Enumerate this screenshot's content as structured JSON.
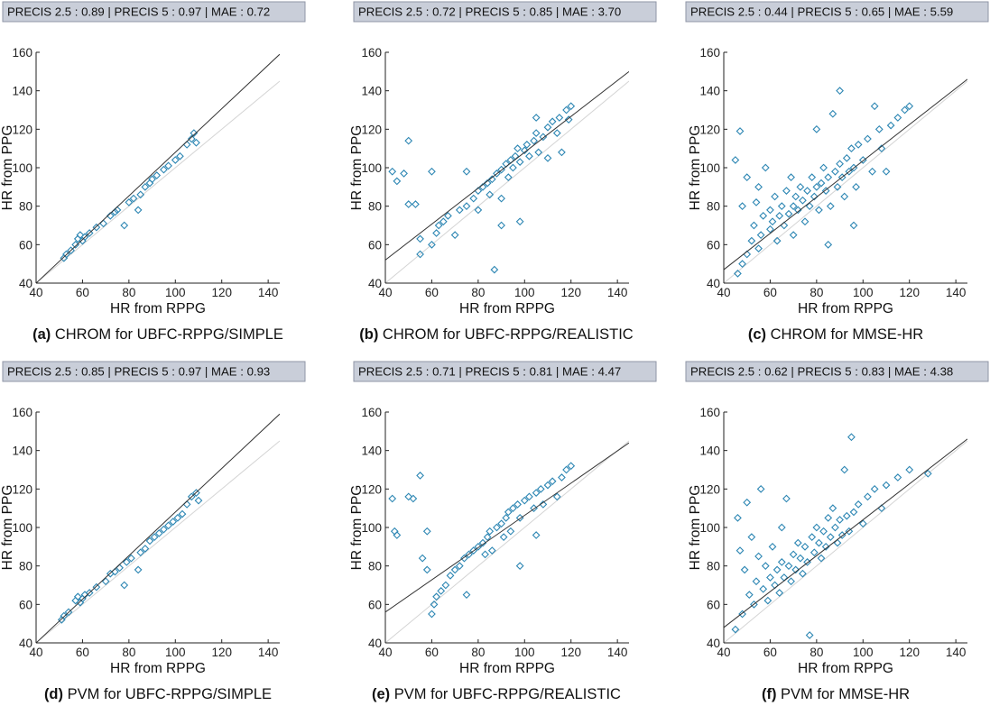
{
  "chart_data": [
    {
      "type": "scatter",
      "panel_label": "(a)",
      "caption": "CHROM for UBFC-RPPG/SIMPLE",
      "header": "PRECIS 2.5 : 0.89 | PRECIS 5 : 0.97 | MAE : 0.72",
      "xlabel": "HR from RPPG",
      "ylabel": "HR from PPG",
      "xlim": [
        40,
        145
      ],
      "ylim": [
        40,
        160
      ],
      "xticks": [
        40,
        60,
        80,
        100,
        120,
        140
      ],
      "yticks": [
        40,
        60,
        80,
        100,
        120,
        140,
        160
      ],
      "identity_line": true,
      "fit_line": [
        [
          40,
          40
        ],
        [
          145,
          159
        ]
      ],
      "points": [
        [
          52,
          53
        ],
        [
          53,
          55
        ],
        [
          55,
          57
        ],
        [
          57,
          60
        ],
        [
          58,
          63
        ],
        [
          59,
          65
        ],
        [
          60,
          62
        ],
        [
          61,
          64
        ],
        [
          63,
          66
        ],
        [
          66,
          69
        ],
        [
          69,
          71
        ],
        [
          72,
          75
        ],
        [
          74,
          77
        ],
        [
          75,
          78
        ],
        [
          78,
          70
        ],
        [
          80,
          82
        ],
        [
          82,
          84
        ],
        [
          84,
          78
        ],
        [
          85,
          86
        ],
        [
          87,
          90
        ],
        [
          89,
          92
        ],
        [
          90,
          94
        ],
        [
          92,
          96
        ],
        [
          95,
          99
        ],
        [
          97,
          101
        ],
        [
          100,
          104
        ],
        [
          102,
          106
        ],
        [
          105,
          112
        ],
        [
          107,
          115
        ],
        [
          108,
          118
        ],
        [
          109,
          113
        ]
      ]
    },
    {
      "type": "scatter",
      "panel_label": "(b)",
      "caption": "CHROM for UBFC-RPPG/REALISTIC",
      "header": "PRECIS 2.5 : 0.72 | PRECIS 5 : 0.85 | MAE : 3.70",
      "xlabel": "HR from RPPG",
      "ylabel": "HR from PPG",
      "xlim": [
        40,
        145
      ],
      "ylim": [
        40,
        160
      ],
      "xticks": [
        40,
        60,
        80,
        100,
        120,
        140
      ],
      "yticks": [
        40,
        60,
        80,
        100,
        120,
        140,
        160
      ],
      "identity_line": true,
      "fit_line": [
        [
          40,
          52
        ],
        [
          145,
          150
        ]
      ],
      "points": [
        [
          43,
          98
        ],
        [
          45,
          93
        ],
        [
          48,
          97
        ],
        [
          50,
          114
        ],
        [
          50,
          81
        ],
        [
          53,
          81
        ],
        [
          55,
          55
        ],
        [
          55,
          63
        ],
        [
          60,
          98
        ],
        [
          60,
          60
        ],
        [
          62,
          66
        ],
        [
          63,
          70
        ],
        [
          65,
          72
        ],
        [
          67,
          75
        ],
        [
          70,
          65
        ],
        [
          72,
          78
        ],
        [
          75,
          80
        ],
        [
          75,
          98
        ],
        [
          78,
          84
        ],
        [
          80,
          88
        ],
        [
          80,
          78
        ],
        [
          82,
          90
        ],
        [
          84,
          92
        ],
        [
          85,
          86
        ],
        [
          86,
          94
        ],
        [
          87,
          47
        ],
        [
          88,
          97
        ],
        [
          90,
          99
        ],
        [
          90,
          84
        ],
        [
          92,
          102
        ],
        [
          93,
          95
        ],
        [
          94,
          104
        ],
        [
          95,
          100
        ],
        [
          96,
          106
        ],
        [
          97,
          110
        ],
        [
          98,
          103
        ],
        [
          100,
          109
        ],
        [
          101,
          112
        ],
        [
          102,
          106
        ],
        [
          104,
          114
        ],
        [
          105,
          118
        ],
        [
          106,
          108
        ],
        [
          108,
          116
        ],
        [
          110,
          121
        ],
        [
          110,
          105
        ],
        [
          112,
          124
        ],
        [
          114,
          118
        ],
        [
          115,
          126
        ],
        [
          116,
          108
        ],
        [
          118,
          130
        ],
        [
          119,
          125
        ],
        [
          120,
          132
        ],
        [
          105,
          126
        ],
        [
          98,
          72
        ],
        [
          90,
          70
        ]
      ]
    },
    {
      "type": "scatter",
      "panel_label": "(c)",
      "caption": "CHROM for MMSE-HR",
      "header": "PRECIS 2.5 : 0.44 | PRECIS 5 : 0.65 | MAE : 5.59",
      "xlabel": "HR from RPPG",
      "ylabel": "HR from PPG",
      "xlim": [
        40,
        145
      ],
      "ylim": [
        40,
        160
      ],
      "xticks": [
        40,
        60,
        80,
        100,
        120,
        140
      ],
      "yticks": [
        40,
        60,
        80,
        100,
        120,
        140,
        160
      ],
      "identity_line": true,
      "fit_line": [
        [
          40,
          47
        ],
        [
          145,
          146
        ]
      ],
      "points": [
        [
          45,
          104
        ],
        [
          46,
          45
        ],
        [
          47,
          119
        ],
        [
          48,
          50
        ],
        [
          48,
          80
        ],
        [
          50,
          55
        ],
        [
          50,
          95
        ],
        [
          52,
          62
        ],
        [
          53,
          70
        ],
        [
          54,
          82
        ],
        [
          55,
          58
        ],
        [
          55,
          90
        ],
        [
          56,
          65
        ],
        [
          57,
          75
        ],
        [
          58,
          100
        ],
        [
          60,
          68
        ],
        [
          60,
          78
        ],
        [
          61,
          72
        ],
        [
          62,
          85
        ],
        [
          63,
          62
        ],
        [
          64,
          75
        ],
        [
          65,
          80
        ],
        [
          66,
          70
        ],
        [
          67,
          88
        ],
        [
          68,
          76
        ],
        [
          69,
          95
        ],
        [
          70,
          80
        ],
        [
          70,
          65
        ],
        [
          71,
          85
        ],
        [
          72,
          78
        ],
        [
          73,
          90
        ],
        [
          74,
          83
        ],
        [
          75,
          72
        ],
        [
          76,
          88
        ],
        [
          77,
          80
        ],
        [
          78,
          95
        ],
        [
          79,
          85
        ],
        [
          80,
          120
        ],
        [
          80,
          90
        ],
        [
          81,
          78
        ],
        [
          82,
          92
        ],
        [
          83,
          100
        ],
        [
          84,
          88
        ],
        [
          85,
          95
        ],
        [
          86,
          80
        ],
        [
          87,
          128
        ],
        [
          88,
          98
        ],
        [
          89,
          90
        ],
        [
          90,
          102
        ],
        [
          90,
          140
        ],
        [
          91,
          95
        ],
        [
          92,
          85
        ],
        [
          93,
          105
        ],
        [
          94,
          98
        ],
        [
          95,
          110
        ],
        [
          96,
          100
        ],
        [
          97,
          90
        ],
        [
          98,
          112
        ],
        [
          100,
          104
        ],
        [
          102,
          115
        ],
        [
          104,
          98
        ],
        [
          105,
          132
        ],
        [
          107,
          120
        ],
        [
          108,
          110
        ],
        [
          110,
          98
        ],
        [
          112,
          122
        ],
        [
          115,
          126
        ],
        [
          118,
          130
        ],
        [
          120,
          132
        ],
        [
          96,
          70
        ],
        [
          85,
          60
        ]
      ]
    },
    {
      "type": "scatter",
      "panel_label": "(d)",
      "caption": "PVM for UBFC-RPPG/SIMPLE",
      "header": "PRECIS 2.5 : 0.85 | PRECIS 5 : 0.97 | MAE : 0.93",
      "xlabel": "HR from RPPG",
      "ylabel": "HR from PPG",
      "xlim": [
        40,
        145
      ],
      "ylim": [
        40,
        160
      ],
      "xticks": [
        40,
        60,
        80,
        100,
        120,
        140
      ],
      "yticks": [
        40,
        60,
        80,
        100,
        120,
        140,
        160
      ],
      "identity_line": true,
      "fit_line": [
        [
          40,
          40
        ],
        [
          145,
          159
        ]
      ],
      "points": [
        [
          51,
          52
        ],
        [
          52,
          54
        ],
        [
          54,
          56
        ],
        [
          57,
          62
        ],
        [
          58,
          64
        ],
        [
          59,
          61
        ],
        [
          60,
          63
        ],
        [
          61,
          65
        ],
        [
          63,
          66
        ],
        [
          66,
          69
        ],
        [
          70,
          72
        ],
        [
          72,
          76
        ],
        [
          74,
          77
        ],
        [
          76,
          79
        ],
        [
          78,
          70
        ],
        [
          79,
          82
        ],
        [
          81,
          84
        ],
        [
          84,
          78
        ],
        [
          85,
          87
        ],
        [
          87,
          89
        ],
        [
          89,
          93
        ],
        [
          91,
          95
        ],
        [
          93,
          97
        ],
        [
          95,
          99
        ],
        [
          97,
          101
        ],
        [
          99,
          103
        ],
        [
          101,
          105
        ],
        [
          103,
          107
        ],
        [
          105,
          112
        ],
        [
          107,
          116
        ],
        [
          109,
          118
        ],
        [
          110,
          114
        ]
      ]
    },
    {
      "type": "scatter",
      "panel_label": "(e)",
      "caption": "PVM for UBFC-RPPG/REALISTIC",
      "header": "PRECIS 2.5 : 0.71 | PRECIS 5 : 0.81 | MAE : 4.47",
      "xlabel": "HR from RPPG",
      "ylabel": "HR from PPG",
      "xlim": [
        40,
        145
      ],
      "ylim": [
        40,
        160
      ],
      "xticks": [
        40,
        60,
        80,
        100,
        120,
        140
      ],
      "yticks": [
        40,
        60,
        80,
        100,
        120,
        140,
        160
      ],
      "identity_line": true,
      "fit_line": [
        [
          40,
          56
        ],
        [
          145,
          144
        ]
      ],
      "points": [
        [
          43,
          115
        ],
        [
          44,
          98
        ],
        [
          45,
          96
        ],
        [
          50,
          116
        ],
        [
          52,
          115
        ],
        [
          55,
          127
        ],
        [
          56,
          84
        ],
        [
          58,
          78
        ],
        [
          58,
          98
        ],
        [
          60,
          55
        ],
        [
          61,
          60
        ],
        [
          62,
          64
        ],
        [
          64,
          67
        ],
        [
          66,
          70
        ],
        [
          68,
          75
        ],
        [
          70,
          78
        ],
        [
          72,
          80
        ],
        [
          74,
          84
        ],
        [
          75,
          65
        ],
        [
          76,
          86
        ],
        [
          78,
          88
        ],
        [
          80,
          90
        ],
        [
          82,
          92
        ],
        [
          83,
          86
        ],
        [
          84,
          95
        ],
        [
          85,
          98
        ],
        [
          86,
          88
        ],
        [
          88,
          100
        ],
        [
          90,
          102
        ],
        [
          91,
          95
        ],
        [
          92,
          105
        ],
        [
          93,
          108
        ],
        [
          94,
          98
        ],
        [
          95,
          110
        ],
        [
          97,
          112
        ],
        [
          98,
          105
        ],
        [
          100,
          114
        ],
        [
          102,
          116
        ],
        [
          104,
          110
        ],
        [
          105,
          118
        ],
        [
          107,
          120
        ],
        [
          108,
          112
        ],
        [
          110,
          122
        ],
        [
          112,
          124
        ],
        [
          114,
          116
        ],
        [
          116,
          126
        ],
        [
          118,
          130
        ],
        [
          120,
          132
        ],
        [
          98,
          80
        ],
        [
          105,
          96
        ]
      ]
    },
    {
      "type": "scatter",
      "panel_label": "(f)",
      "caption": "PVM for MMSE-HR",
      "header": "PRECIS 2.5 : 0.62 | PRECIS 5 : 0.83 | MAE : 4.38",
      "xlabel": "HR from RPPG",
      "ylabel": "HR from PPG",
      "xlim": [
        40,
        145
      ],
      "ylim": [
        40,
        160
      ],
      "xticks": [
        40,
        60,
        80,
        100,
        120,
        140
      ],
      "yticks": [
        40,
        60,
        80,
        100,
        120,
        140,
        160
      ],
      "identity_line": true,
      "fit_line": [
        [
          40,
          48
        ],
        [
          145,
          146
        ]
      ],
      "points": [
        [
          45,
          47
        ],
        [
          46,
          105
        ],
        [
          47,
          88
        ],
        [
          48,
          55
        ],
        [
          49,
          78
        ],
        [
          50,
          113
        ],
        [
          51,
          65
        ],
        [
          52,
          95
        ],
        [
          53,
          60
        ],
        [
          54,
          72
        ],
        [
          55,
          85
        ],
        [
          56,
          120
        ],
        [
          57,
          68
        ],
        [
          58,
          80
        ],
        [
          59,
          62
        ],
        [
          60,
          74
        ],
        [
          61,
          90
        ],
        [
          62,
          70
        ],
        [
          63,
          78
        ],
        [
          64,
          66
        ],
        [
          65,
          82
        ],
        [
          66,
          74
        ],
        [
          67,
          115
        ],
        [
          68,
          80
        ],
        [
          69,
          72
        ],
        [
          70,
          86
        ],
        [
          71,
          78
        ],
        [
          72,
          92
        ],
        [
          73,
          84
        ],
        [
          74,
          76
        ],
        [
          75,
          90
        ],
        [
          76,
          82
        ],
        [
          77,
          44
        ],
        [
          78,
          95
        ],
        [
          79,
          87
        ],
        [
          80,
          100
        ],
        [
          81,
          92
        ],
        [
          82,
          84
        ],
        [
          83,
          98
        ],
        [
          84,
          90
        ],
        [
          85,
          105
        ],
        [
          86,
          95
        ],
        [
          87,
          110
        ],
        [
          88,
          100
        ],
        [
          89,
          92
        ],
        [
          90,
          104
        ],
        [
          91,
          96
        ],
        [
          92,
          130
        ],
        [
          93,
          106
        ],
        [
          94,
          98
        ],
        [
          95,
          147
        ],
        [
          96,
          108
        ],
        [
          98,
          112
        ],
        [
          100,
          102
        ],
        [
          102,
          116
        ],
        [
          105,
          120
        ],
        [
          108,
          110
        ],
        [
          110,
          122
        ],
        [
          115,
          126
        ],
        [
          120,
          130
        ],
        [
          128,
          128
        ],
        [
          55,
          37
        ],
        [
          65,
          100
        ]
      ]
    }
  ]
}
